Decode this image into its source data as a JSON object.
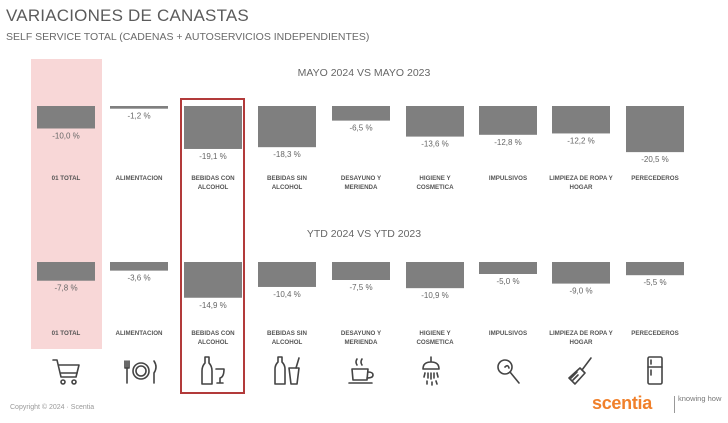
{
  "header": {
    "title": "VARIACIONES DE CANASTAS",
    "subtitle": "SELF SERVICE TOTAL (CADENAS + AUTOSERVICIOS INDEPENDIENTES)"
  },
  "chart_data": [
    {
      "type": "bar",
      "title": "MAYO 2024 VS MAYO 2023",
      "categories": [
        "01 TOTAL",
        "ALIMENTACION",
        "BEBIDAS CON ALCOHOL",
        "BEBIDAS SIN ALCOHOL",
        "DESAYUNO Y MERIENDA",
        "HIGIENE Y COSMETICA",
        "IMPULSIVOS",
        "LIMPIEZA DE ROPA Y HOGAR",
        "PERECEDEROS"
      ],
      "values": [
        -10.0,
        -1.2,
        -19.1,
        -18.3,
        -6.5,
        -13.6,
        -12.8,
        -12.2,
        -20.5
      ],
      "labels": [
        "-10,0 %",
        "-1,2 %",
        "-19,1 %",
        "-18,3 %",
        "-6,5 %",
        "-13,6 %",
        "-12,8 %",
        "-12,2 %",
        "-20,5 %"
      ],
      "category_lines": [
        [
          "01 TOTAL"
        ],
        [
          "ALIMENTACION"
        ],
        [
          "BEBIDAS CON",
          "ALCOHOL"
        ],
        [
          "BEBIDAS SIN",
          "ALCOHOL"
        ],
        [
          "DESAYUNO Y",
          "MERIENDA"
        ],
        [
          "HIGIENE Y",
          "COSMETICA"
        ],
        [
          "IMPULSIVOS"
        ],
        [
          "LIMPIEZA DE ROPA Y",
          "HOGAR"
        ],
        [
          "PERECEDEROS"
        ]
      ],
      "bar_color": "#7f7f7f"
    },
    {
      "type": "bar",
      "title": "YTD 2024 VS YTD 2023",
      "categories": [
        "01 TOTAL",
        "ALIMENTACION",
        "BEBIDAS CON ALCOHOL",
        "BEBIDAS SIN ALCOHOL",
        "DESAYUNO Y MERIENDA",
        "HIGIENE Y COSMETICA",
        "IMPULSIVOS",
        "LIMPIEZA DE ROPA Y HOGAR",
        "PERECEDEROS"
      ],
      "values": [
        -7.8,
        -3.6,
        -14.9,
        -10.4,
        -7.5,
        -10.9,
        -5.0,
        -9.0,
        -5.5
      ],
      "labels": [
        "-7,8 %",
        "-3,6 %",
        "-14,9 %",
        "-10,4 %",
        "-7,5 %",
        "-10,9 %",
        "-5,0 %",
        "-9,0 %",
        "-5,5 %"
      ],
      "category_lines": [
        [
          "01 TOTAL"
        ],
        [
          "ALIMENTACION"
        ],
        [
          "BEBIDAS CON",
          "ALCOHOL"
        ],
        [
          "BEBIDAS SIN",
          "ALCOHOL"
        ],
        [
          "DESAYUNO Y",
          "MERIENDA"
        ],
        [
          "HIGIENE Y",
          "COSMETICA"
        ],
        [
          "IMPULSIVOS"
        ],
        [
          "LIMPIEZA DE ROPA Y",
          "HOGAR"
        ],
        [
          "PERECEDEROS"
        ]
      ],
      "bar_color": "#7f7f7f"
    }
  ],
  "icons": [
    "shopping-cart-icon",
    "cutlery-plate-icon",
    "wine-bottle-glass-icon",
    "soda-bottle-cup-icon",
    "coffee-cup-icon",
    "shower-icon",
    "lollipop-icon",
    "broom-icon",
    "refrigerator-icon"
  ],
  "footer": {
    "copyright": "Copyright © 2024 · Scentia",
    "logo": "scentia",
    "tagline": "knowing how"
  },
  "colors": {
    "highlight_fill": "#f8d7d7",
    "highlight_border": "#b23a3a",
    "brand": "#f0802b"
  }
}
